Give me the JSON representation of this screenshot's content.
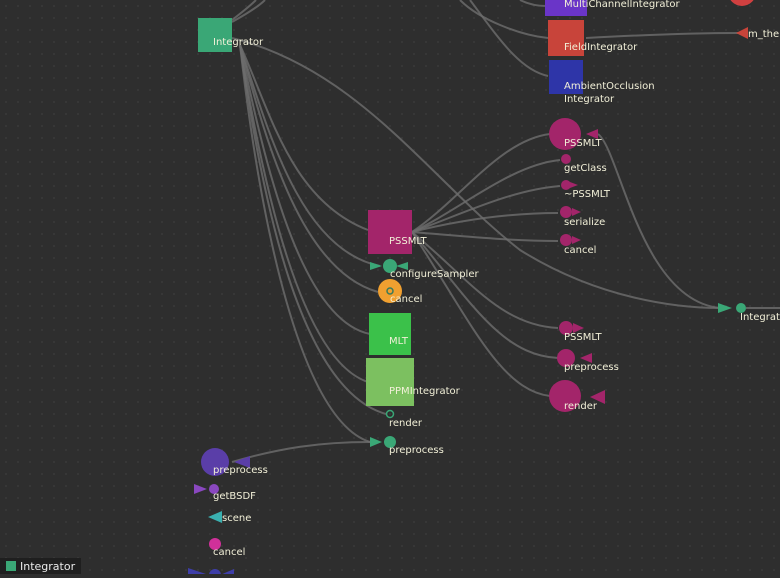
{
  "colors": {
    "background": "#2e2e2e",
    "edge": "#6e6e6e",
    "integrator": "#3aa776",
    "pssmlt": "#a3256a",
    "field_integrator": "#c8443a",
    "ambient_occlusion": "#2e35a8",
    "multichannel": "#6a35c8",
    "mlt": "#3bc14a",
    "ppm_integrator": "#7cc060",
    "orange": "#f0a030",
    "purple_node": "#5a3ea8",
    "violet_node": "#8a48c0",
    "cyan_node": "#3ab0b0",
    "magenta_node": "#d0309a",
    "red_node": "#d04040"
  },
  "nodes": {
    "integrator": "Integrator",
    "multichannel": "MultiChannelIntegrator",
    "field_integrator": "FieldIntegrator",
    "ambient_occlusion_line1": "AmbientOcclusion",
    "ambient_occlusion_line2": "Integrator",
    "m_the": "m_the",
    "pssmlt_top": "PSSMLT",
    "get_class": "getClass",
    "dtor_pssmlt": "~PSSMLT",
    "serialize": "serialize",
    "cancel_top": "cancel",
    "pssmlt_center": "PSSMLT",
    "configure_sampler": "configureSampler",
    "cancel_orange": "cancel",
    "mlt": "MLT",
    "ppm_integrator": "PPMIntegrator",
    "render_small": "render",
    "preprocess_center": "preprocess",
    "pssmlt_ctor": "PSSMLT",
    "preprocess_right": "preprocess",
    "render_right": "render",
    "integrat_right": "Integrat",
    "preprocess_left": "preprocess",
    "get_bsdf": "getBSDF",
    "scene": "scene",
    "cancel_left": "cancel"
  },
  "status": {
    "label": "Integrator",
    "swatch_color": "#3aa776"
  }
}
